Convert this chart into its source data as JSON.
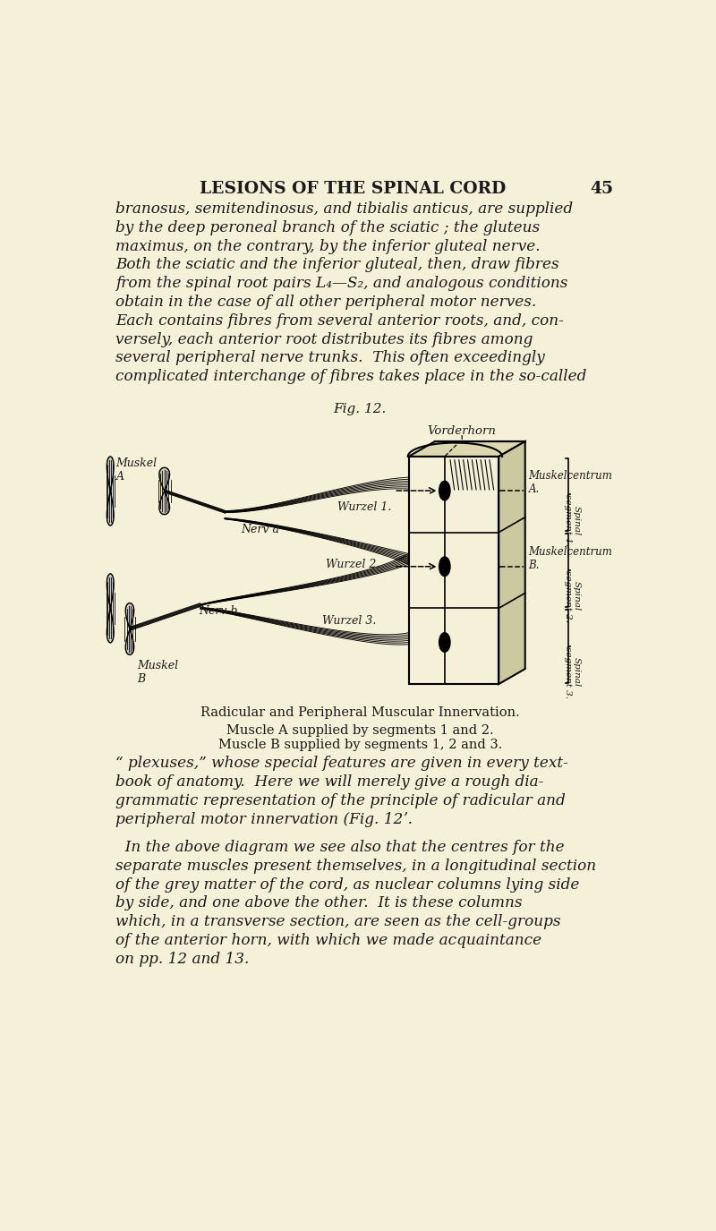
{
  "bg_color": "#f5f0d8",
  "text_color": "#1a1a1a",
  "page_title": "LESIONS OF THE SPINAL CORD",
  "page_number": "45",
  "fig_caption": "Fig. 12.",
  "diagram_label_vorderhorn": "Vorderhorn",
  "diagram_label_muskelA": "Muskel\nA",
  "diagram_label_muskelB": "Muskel\nB",
  "diagram_label_nerva": "Nerv a",
  "diagram_label_nervb": "Nerv b.",
  "diagram_label_wurzel1": "Wurzel 1.",
  "diagram_label_wurzel2": "Wurzel 2.",
  "diagram_label_wurzel3": "Wurzel 3.",
  "diagram_label_muskelcentrumA": "Muskelcentrum\nA.",
  "diagram_label_muskelcentrumB": "Muskelcentrum\nB.",
  "diagram_label_spinal1": "Spinal\nsegment 1.",
  "diagram_label_spinal2": "Spinal\nsegment 2.",
  "diagram_label_spinal3": "Spinal\nsegment 3.",
  "fig_title": "Radicular and Peripheral Muscular Innervation.",
  "caption_line1": "Muscle A supplied by segments 1 and 2.",
  "caption_line2": "Muscle B supplied by segments 1, 2 and 3.",
  "para1_lines": [
    "branosus, semitendinosus, and tibialis anticus, are supplied",
    "by the deep peroneal branch of the sciatic ; the gluteus",
    "maximus, on the contrary, by the inferior gluteal nerve.",
    "Both the sciatic and the inferior gluteal, then, draw fibres",
    "from the spinal root pairs L₄—S₂, and analogous conditions",
    "obtain in the case of all other peripheral motor nerves.",
    "Each contains fibres from several anterior roots, and, con-",
    "versely, each anterior root distributes its fibres among",
    "several peripheral nerve trunks.  This often exceedingly",
    "complicated interchange of fibres takes place in the so-called"
  ],
  "para2_lines": [
    "“ plexuses,” whose special features are given in every text-",
    "book of anatomy.  Here we will merely give a rough dia-",
    "grammatic representation of the principle of radicular and",
    "peripheral motor innervation (Fig. 12ʼ."
  ],
  "para3_lines": [
    "  In the above diagram we see also that the centres for the",
    "separate muscles present themselves, in a longitudinal section",
    "of the grey matter of the cord, as nuclear columns lying side",
    "by side, and one above the other.  It is these columns",
    "which, in a transverse section, are seen as the cell-groups",
    "of the anterior horn, with which we made acquaintance",
    "on pp. 12 and 13."
  ]
}
